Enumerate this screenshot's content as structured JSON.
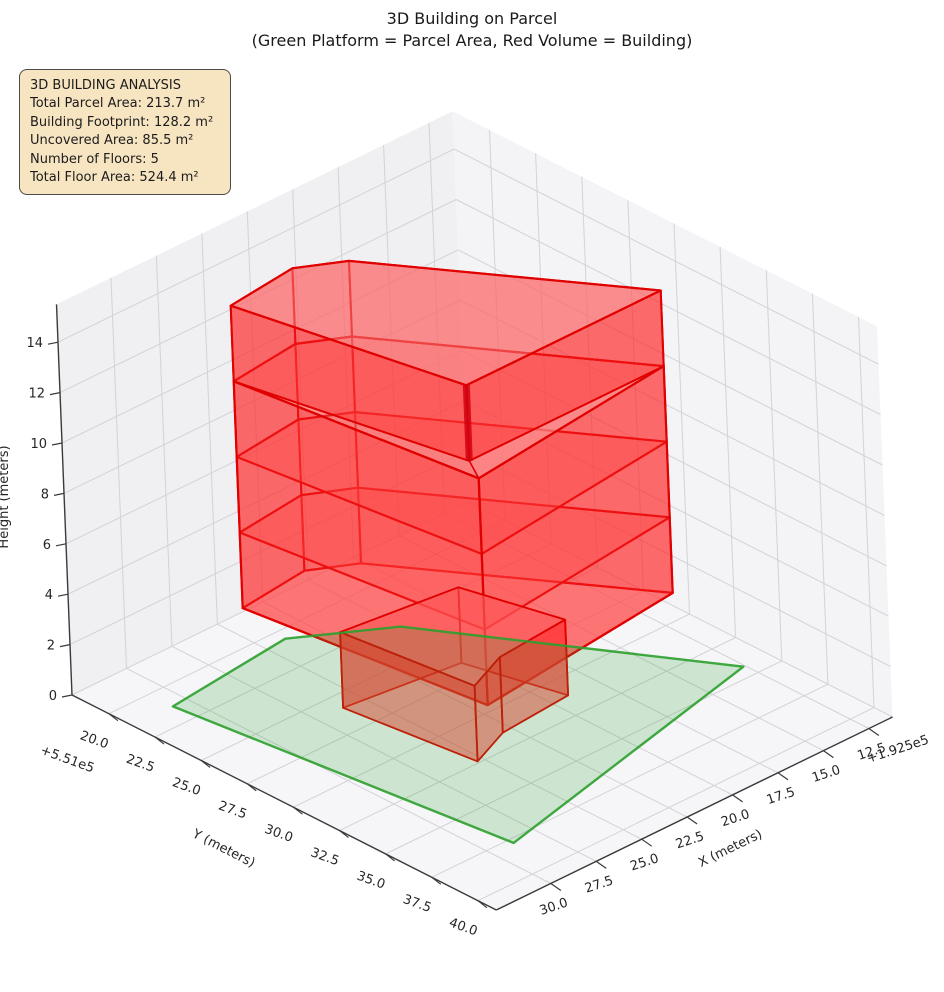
{
  "title": {
    "line1": "3D Building on Parcel",
    "line2": "(Green Platform = Parcel Area, Red Volume = Building)"
  },
  "analysis_box": {
    "title": "3D BUILDING ANALYSIS",
    "lines": [
      "Total Parcel Area: 213.7 m²",
      "Building Footprint: 128.2 m²",
      "Uncovered Area: 85.5 m²",
      "Number of Floors: 5",
      "Total Floor Area: 524.4 m²"
    ]
  },
  "chart_data": {
    "type": "3d-building",
    "title": "3D Building on Parcel",
    "subtitle": "(Green Platform = Parcel Area, Red Volume = Building)",
    "stats": {
      "total_parcel_area_m2": 213.7,
      "building_footprint_m2": 128.2,
      "uncovered_area_m2": 85.5,
      "number_of_floors": 5,
      "total_floor_area_m2": 524.4
    },
    "axes": {
      "x": {
        "label": "X (meters)",
        "offset_text": "+1.925e5",
        "tick_values": [
          12.5,
          15,
          17.5,
          20,
          22.5,
          25,
          27.5,
          30
        ],
        "tick_labels": [
          "12.5",
          "15.0",
          "17.5",
          "20.0",
          "22.5",
          "25.0",
          "27.5",
          "30.0"
        ],
        "range": [
          11.2,
          33
        ]
      },
      "y": {
        "label": "Y (meters)",
        "offset_text": "+5.51e5",
        "tick_values": [
          20,
          22.5,
          25,
          27.5,
          30,
          32.5,
          35,
          37.5,
          40
        ],
        "tick_labels": [
          "20.0",
          "22.5",
          "25.0",
          "27.5",
          "30.0",
          "32.5",
          "35.0",
          "37.5",
          "40.0"
        ],
        "range": [
          18,
          41
        ]
      },
      "z": {
        "label": "Height (meters)",
        "tick_values": [
          0,
          2,
          4,
          6,
          8,
          10,
          12,
          14
        ],
        "tick_labels": [
          "0",
          "2",
          "4",
          "6",
          "8",
          "10",
          "12",
          "14"
        ],
        "range": [
          0,
          15.5
        ]
      }
    },
    "parcel": {
      "color": "#2ca02c",
      "fill": "rgba(44,160,44,0.20)",
      "polygon": [
        [
          30.8,
          21.3
        ],
        [
          23.9,
          20.6
        ],
        [
          20.0,
          23.0
        ],
        [
          12.6,
          34.3
        ],
        [
          28.8,
          37.8
        ]
      ]
    },
    "building": {
      "edge_color": "#e00000",
      "floor_height_m": 3,
      "ground_floor": {
        "footprint": [
          [
            26.1,
            25.9
          ],
          [
            25.3,
            32.4
          ],
          [
            23.0,
            31.5
          ],
          [
            19.1,
            31.2
          ],
          [
            20.3,
            26.6
          ]
        ],
        "z": [
          0,
          3
        ]
      },
      "main_mass": {
        "footprint": [
          [
            27.5,
            22.0
          ],
          [
            23.7,
            21.6
          ],
          [
            21.7,
            22.7
          ],
          [
            14.6,
            32.6
          ],
          [
            26.0,
            33.8
          ]
        ],
        "z": [
          3,
          12
        ],
        "slabs": [
          6,
          9,
          12
        ]
      },
      "top_floor": {
        "footprint": [
          [
            27.5,
            22.0
          ],
          [
            23.7,
            21.6
          ],
          [
            21.7,
            22.7
          ],
          [
            14.6,
            32.6
          ],
          [
            25.3,
            32.6
          ]
        ],
        "z": [
          12,
          15
        ]
      },
      "terrace": [
        [
          14.6,
          32.6
        ],
        [
          26.0,
          33.8
        ],
        [
          25.3,
          32.6
        ]
      ],
      "corner_post": {
        "at": [
          25.3,
          32.6
        ],
        "z": [
          12,
          15
        ]
      }
    }
  },
  "colors": {
    "pane_left": "#f0f0f3",
    "pane_right": "#f4f4f7",
    "pane_floor": "#f6f6f9",
    "grid": "#d2d2d7",
    "axis_line": "#3a3a3a",
    "text": "#262626"
  }
}
